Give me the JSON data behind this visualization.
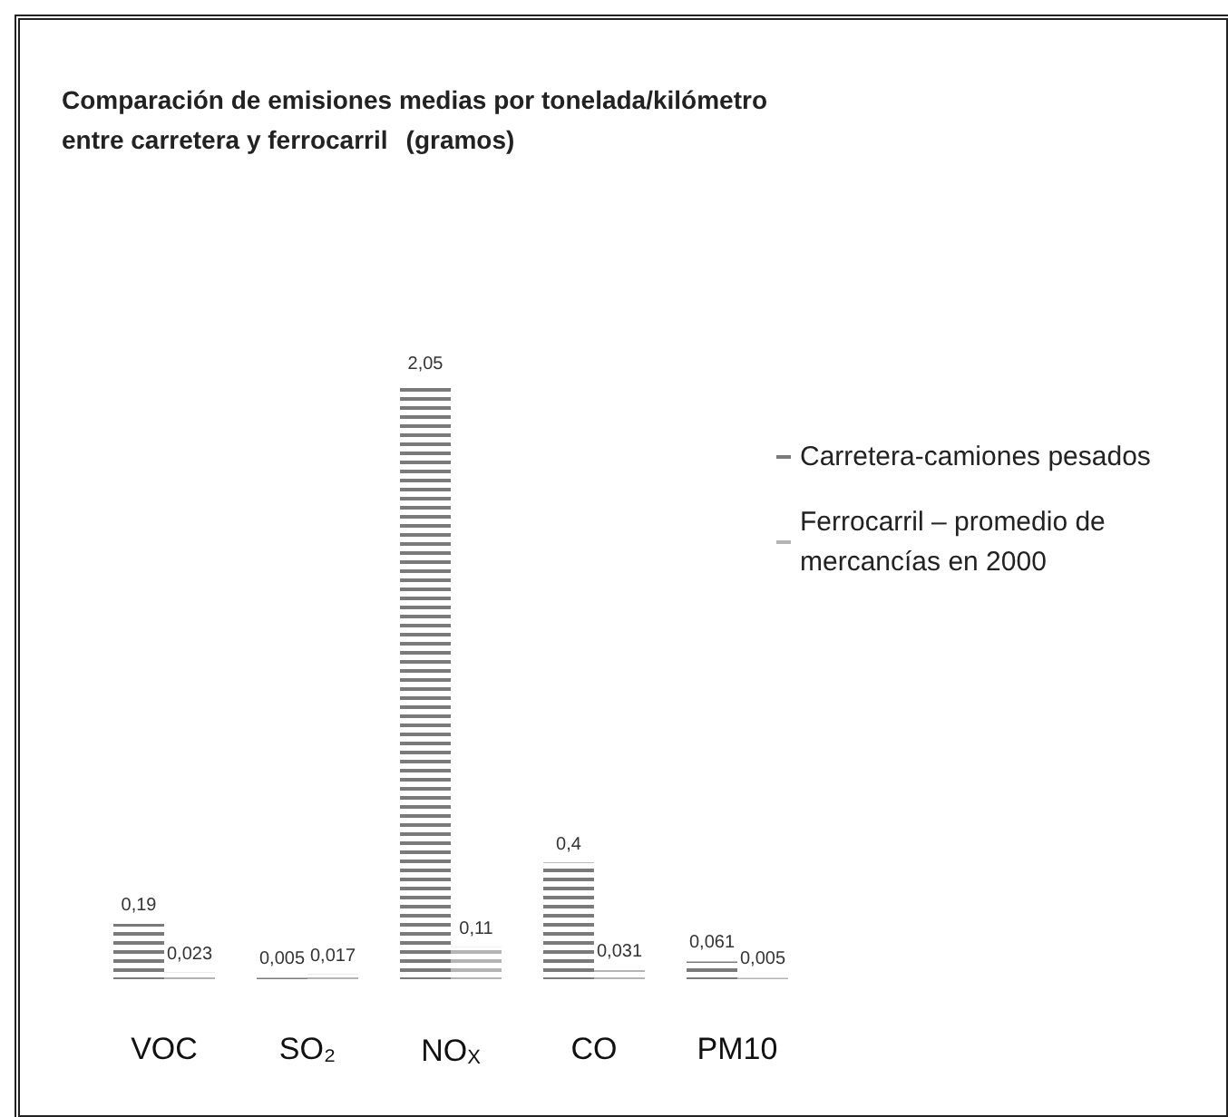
{
  "chart_data": {
    "type": "bar",
    "title": "Comparación de emisiones medias por tonelada/kilómetro entre carretera y ferrocarril",
    "subtitle": "(gramos)",
    "categories": [
      "VOC",
      "SO₂",
      "NO$_{X}$",
      "CO",
      "PM10"
    ],
    "series": [
      {
        "name": "Carretera-camiones pesados",
        "color": "#7a7a7a",
        "values": [
          0.19,
          0.005,
          2.05,
          0.4,
          0.061
        ],
        "value_labels": [
          "0,19",
          "0,005",
          "2,05",
          "0,4",
          "0,061"
        ]
      },
      {
        "name": "Ferrocarril – promedio de mercancías en 2000",
        "color": "#b4b4b4",
        "values": [
          0.023,
          0.017,
          0.11,
          0.031,
          0.005
        ],
        "value_labels": [
          "0,023",
          "0,017",
          "0,11",
          "0,031",
          "0,005"
        ]
      }
    ],
    "legend": "top right",
    "grid": false
  }
}
